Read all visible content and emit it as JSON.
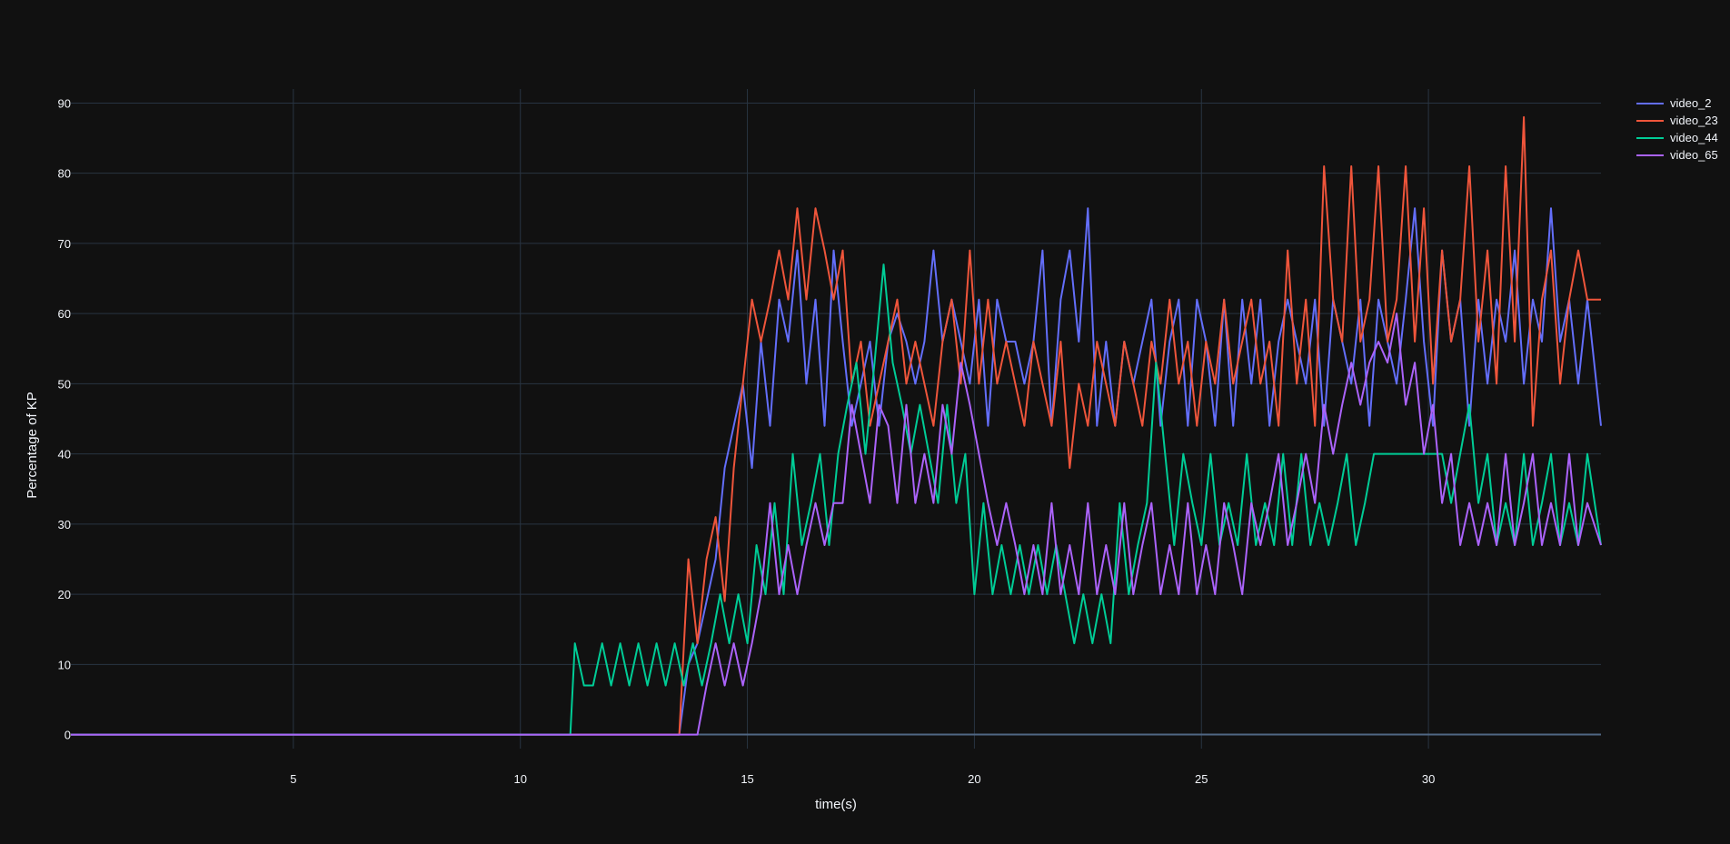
{
  "chart_data": {
    "type": "line",
    "xlabel": "time(s)",
    "ylabel": "Percentage of KP",
    "xlim": [
      0.1,
      33.8
    ],
    "ylim": [
      -2,
      92
    ],
    "x_ticks": [
      5,
      10,
      15,
      20,
      25,
      30
    ],
    "y_ticks": [
      0,
      10,
      20,
      30,
      40,
      50,
      60,
      70,
      80,
      90
    ],
    "grid": true,
    "legend_position": "top-right",
    "background": "#111111",
    "grid_color": "#283442",
    "text_color": "#f2f5fa",
    "series": [
      {
        "name": "video_2",
        "color": "#636efa",
        "x": [
          0.1,
          13.5,
          13.7,
          13.9,
          14.1,
          14.3,
          14.5,
          14.7,
          14.9,
          15.1,
          15.3,
          15.5,
          15.7,
          15.9,
          16.1,
          16.3,
          16.5,
          16.7,
          16.9,
          17.1,
          17.3,
          17.5,
          17.7,
          17.9,
          18.1,
          18.3,
          18.5,
          18.7,
          18.9,
          19.1,
          19.3,
          19.5,
          19.7,
          19.9,
          20.1,
          20.3,
          20.5,
          20.7,
          20.9,
          21.1,
          21.3,
          21.5,
          21.7,
          21.9,
          22.1,
          22.3,
          22.5,
          22.7,
          22.9,
          23.1,
          23.3,
          23.5,
          23.7,
          23.9,
          24.1,
          24.3,
          24.5,
          24.7,
          24.9,
          25.1,
          25.3,
          25.5,
          25.7,
          25.9,
          26.1,
          26.3,
          26.5,
          26.7,
          26.9,
          27.1,
          27.3,
          27.5,
          27.7,
          27.9,
          28.1,
          28.3,
          28.5,
          28.7,
          28.9,
          29.1,
          29.3,
          29.5,
          29.7,
          29.9,
          30.1,
          30.3,
          30.5,
          30.7,
          30.9,
          31.1,
          31.3,
          31.5,
          31.7,
          31.9,
          32.1,
          32.3,
          32.5,
          32.7,
          32.9,
          33.1,
          33.3,
          33.5,
          33.8
        ],
        "y": [
          0,
          0,
          10,
          13,
          19,
          25,
          38,
          44,
          50,
          38,
          56,
          44,
          62,
          56,
          69,
          50,
          62,
          44,
          69,
          56,
          44,
          50,
          56,
          44,
          56,
          60,
          56,
          50,
          56,
          69,
          56,
          62,
          56,
          50,
          62,
          44,
          62,
          56,
          56,
          50,
          56,
          69,
          44,
          62,
          69,
          56,
          75,
          44,
          56,
          44,
          56,
          50,
          56,
          62,
          44,
          56,
          62,
          44,
          62,
          56,
          44,
          62,
          44,
          62,
          50,
          62,
          44,
          56,
          62,
          56,
          50,
          62,
          44,
          62,
          56,
          50,
          62,
          44,
          62,
          56,
          50,
          62,
          75,
          56,
          44,
          69,
          56,
          62,
          44,
          62,
          50,
          62,
          56,
          69,
          50,
          62,
          56,
          75,
          56,
          62,
          50,
          62,
          44
        ]
      },
      {
        "name": "video_23",
        "color": "#ef553b",
        "x": [
          0.1,
          13.5,
          13.7,
          13.9,
          14.1,
          14.3,
          14.5,
          14.7,
          14.9,
          15.1,
          15.3,
          15.5,
          15.7,
          15.9,
          16.1,
          16.3,
          16.5,
          16.7,
          16.9,
          17.1,
          17.3,
          17.5,
          17.7,
          17.9,
          18.1,
          18.3,
          18.5,
          18.7,
          18.9,
          19.1,
          19.3,
          19.5,
          19.7,
          19.9,
          20.1,
          20.3,
          20.5,
          20.7,
          20.9,
          21.1,
          21.3,
          21.5,
          21.7,
          21.9,
          22.1,
          22.3,
          22.5,
          22.7,
          22.9,
          23.1,
          23.3,
          23.5,
          23.7,
          23.9,
          24.1,
          24.3,
          24.5,
          24.7,
          24.9,
          25.1,
          25.3,
          25.5,
          25.7,
          25.9,
          26.1,
          26.3,
          26.5,
          26.7,
          26.9,
          27.1,
          27.3,
          27.5,
          27.7,
          27.9,
          28.1,
          28.3,
          28.5,
          28.7,
          28.9,
          29.1,
          29.3,
          29.5,
          29.7,
          29.9,
          30.1,
          30.3,
          30.5,
          30.7,
          30.9,
          31.1,
          31.3,
          31.5,
          31.7,
          31.9,
          32.1,
          32.3,
          32.5,
          32.7,
          32.9,
          33.1,
          33.3,
          33.5,
          33.8
        ],
        "y": [
          0,
          0,
          25,
          13,
          25,
          31,
          19,
          38,
          50,
          62,
          56,
          62,
          69,
          62,
          75,
          62,
          75,
          69,
          62,
          69,
          50,
          56,
          44,
          50,
          56,
          62,
          50,
          56,
          50,
          44,
          56,
          62,
          50,
          69,
          50,
          62,
          50,
          56,
          50,
          44,
          56,
          50,
          44,
          56,
          38,
          50,
          44,
          56,
          50,
          44,
          56,
          50,
          44,
          56,
          50,
          62,
          50,
          56,
          44,
          56,
          50,
          62,
          50,
          56,
          62,
          50,
          56,
          44,
          69,
          50,
          62,
          44,
          81,
          62,
          56,
          81,
          56,
          62,
          81,
          56,
          62,
          81,
          56,
          75,
          50,
          69,
          56,
          62,
          81,
          56,
          69,
          50,
          81,
          56,
          88,
          44,
          62,
          69,
          50,
          62,
          69,
          62,
          62
        ]
      },
      {
        "name": "video_44",
        "color": "#00cc96",
        "x": [
          0.1,
          11.1,
          11.2,
          11.4,
          11.6,
          11.8,
          12.0,
          12.2,
          12.4,
          12.6,
          12.8,
          13.0,
          13.2,
          13.4,
          13.6,
          13.8,
          14.0,
          14.2,
          14.4,
          14.6,
          14.8,
          15.0,
          15.2,
          15.4,
          15.6,
          15.8,
          16.0,
          16.2,
          16.4,
          16.6,
          16.8,
          17.0,
          17.2,
          17.4,
          17.6,
          17.8,
          18.0,
          18.2,
          18.4,
          18.6,
          18.8,
          19.0,
          19.2,
          19.4,
          19.6,
          19.8,
          20.0,
          20.2,
          20.4,
          20.6,
          20.8,
          21.0,
          21.2,
          21.4,
          21.6,
          21.8,
          22.0,
          22.2,
          22.4,
          22.6,
          22.8,
          23.0,
          23.2,
          23.4,
          23.6,
          23.8,
          24.0,
          24.2,
          24.4,
          24.6,
          24.8,
          25.0,
          25.2,
          25.4,
          25.6,
          25.8,
          26.0,
          26.2,
          26.4,
          26.6,
          26.8,
          27.0,
          27.2,
          27.4,
          27.6,
          27.8,
          28.0,
          28.2,
          28.4,
          28.6,
          28.8,
          29.0,
          29.5,
          30.0,
          30.3,
          30.5,
          30.7,
          30.9,
          31.1,
          31.3,
          31.5,
          31.7,
          31.9,
          32.1,
          32.3,
          32.5,
          32.7,
          32.9,
          33.1,
          33.3,
          33.5,
          33.8
        ],
        "y": [
          0,
          0,
          13,
          7,
          7,
          13,
          7,
          13,
          7,
          13,
          7,
          13,
          7,
          13,
          7,
          13,
          7,
          13,
          20,
          13,
          20,
          13,
          27,
          20,
          33,
          20,
          40,
          27,
          33,
          40,
          27,
          40,
          47,
          53,
          40,
          53,
          67,
          53,
          47,
          40,
          47,
          40,
          33,
          47,
          33,
          40,
          20,
          33,
          20,
          27,
          20,
          27,
          20,
          27,
          20,
          27,
          20,
          13,
          20,
          13,
          20,
          13,
          33,
          20,
          27,
          33,
          53,
          40,
          27,
          40,
          33,
          27,
          40,
          27,
          33,
          27,
          40,
          27,
          33,
          27,
          40,
          27,
          40,
          27,
          33,
          27,
          33,
          40,
          27,
          33,
          40,
          40,
          40,
          40,
          40,
          33,
          40,
          47,
          33,
          40,
          27,
          33,
          27,
          40,
          27,
          33,
          40,
          27,
          33,
          27,
          40,
          27
        ]
      },
      {
        "name": "video_65",
        "color": "#ab63fa",
        "x": [
          0.1,
          13.5,
          13.9,
          14.1,
          14.3,
          14.5,
          14.7,
          14.9,
          15.1,
          15.3,
          15.5,
          15.7,
          15.9,
          16.1,
          16.3,
          16.5,
          16.7,
          16.9,
          17.1,
          17.3,
          17.5,
          17.7,
          17.9,
          18.1,
          18.3,
          18.5,
          18.7,
          18.9,
          19.1,
          19.3,
          19.5,
          19.7,
          19.9,
          20.1,
          20.3,
          20.5,
          20.7,
          20.9,
          21.1,
          21.3,
          21.5,
          21.7,
          21.9,
          22.1,
          22.3,
          22.5,
          22.7,
          22.9,
          23.1,
          23.3,
          23.5,
          23.7,
          23.9,
          24.1,
          24.3,
          24.5,
          24.7,
          24.9,
          25.1,
          25.3,
          25.5,
          25.7,
          25.9,
          26.1,
          26.3,
          26.5,
          26.7,
          26.9,
          27.1,
          27.3,
          27.5,
          27.7,
          27.9,
          28.1,
          28.3,
          28.5,
          28.7,
          28.9,
          29.1,
          29.3,
          29.5,
          29.7,
          29.9,
          30.1,
          30.3,
          30.5,
          30.7,
          30.9,
          31.1,
          31.3,
          31.5,
          31.7,
          31.9,
          32.1,
          32.3,
          32.5,
          32.7,
          32.9,
          33.1,
          33.3,
          33.5,
          33.8
        ],
        "y": [
          0,
          0,
          0,
          7,
          13,
          7,
          13,
          7,
          13,
          20,
          33,
          20,
          27,
          20,
          27,
          33,
          27,
          33,
          33,
          47,
          40,
          33,
          47,
          44,
          33,
          47,
          33,
          40,
          33,
          47,
          40,
          53,
          47,
          40,
          33,
          27,
          33,
          27,
          20,
          27,
          20,
          33,
          20,
          27,
          20,
          33,
          20,
          27,
          20,
          33,
          20,
          27,
          33,
          20,
          27,
          20,
          33,
          20,
          27,
          20,
          33,
          27,
          20,
          33,
          27,
          33,
          40,
          27,
          33,
          40,
          33,
          47,
          40,
          47,
          53,
          47,
          53,
          56,
          53,
          60,
          47,
          53,
          40,
          47,
          33,
          40,
          27,
          33,
          27,
          33,
          27,
          40,
          27,
          33,
          40,
          27,
          33,
          27,
          40,
          27,
          33,
          27
        ]
      }
    ]
  }
}
